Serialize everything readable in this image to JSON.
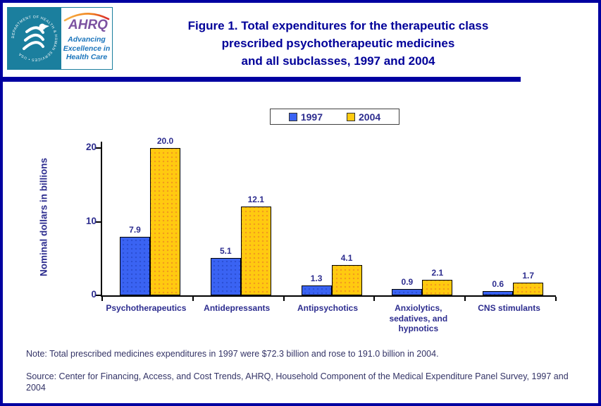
{
  "header": {
    "logo": {
      "seal_text": "DEPARTMENT OF HEALTH & HUMAN SERVICES • USA",
      "ahrq_text": "AHRQ",
      "tagline_lines": [
        "Advancing",
        "Excellence in",
        "Health Care"
      ]
    },
    "title_lines": [
      "Figure 1. Total expenditures for the therapeutic class",
      "prescribed psychotherapeutic medicines",
      "and all subclasses, 1997 and 2004"
    ]
  },
  "chart_data": {
    "type": "bar",
    "title": "Figure 1. Total expenditures for the therapeutic class prescribed psychotherapeutic medicines and all subclasses, 1997 and 2004",
    "xlabel": "",
    "ylabel": "Nominal dollars in billions",
    "ylim": [
      0,
      21
    ],
    "yticks": [
      0,
      10,
      20
    ],
    "grid": false,
    "legend_position": "top-center",
    "categories": [
      "Psychotherapeutics",
      "Antidepressants",
      "Antipsychotics",
      "Anxiolytics,\nsedatives, and\nhypnotics",
      "CNS stimulants"
    ],
    "series": [
      {
        "name": "1997",
        "color": "#3a63f3",
        "dot_color": "#2b4fd4",
        "values": [
          7.9,
          5.1,
          1.3,
          0.9,
          0.6
        ],
        "labels": [
          "7.9",
          "5.1",
          "1.3",
          "0.9",
          "0.6"
        ]
      },
      {
        "name": "2004",
        "color": "#ffca10",
        "dot_color": "#f2991f",
        "values": [
          20.0,
          12.1,
          4.1,
          2.1,
          1.7
        ],
        "labels": [
          "20.0",
          "12.1",
          "4.1",
          "2.1",
          "1.7"
        ]
      }
    ]
  },
  "notes": {
    "note": "Note: Total prescribed medicines expenditures in 1997 were $72.3 billion and rose to 191.0 billion in 2004.",
    "source": "Source: Center for Financing, Access, and Cost Trends, AHRQ, Household Component of the Medical Expenditure Panel Survey, 1997 and 2004"
  },
  "colors": {
    "page_border": "#0000a0",
    "title_navy": "#000099",
    "axis_navy": "#2d2d8f",
    "note_navy": "#333366",
    "seal_teal": "#1b7f9e",
    "ahrq_purple": "#7c52a1",
    "tagline_blue": "#1b75bc",
    "bar_1997": "#3a63f3",
    "bar_2004": "#ffca10"
  }
}
